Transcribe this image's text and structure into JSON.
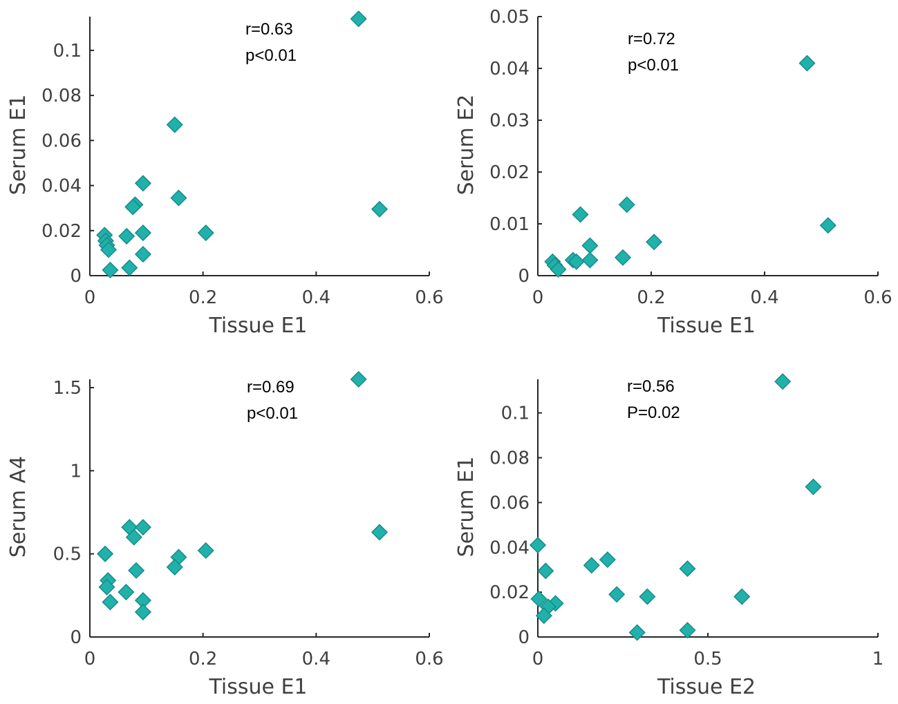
{
  "chart_data": [
    {
      "type": "scatter",
      "xlabel": "Tissue E1",
      "ylabel": "Serum E1",
      "xlim": [
        0,
        0.6
      ],
      "ylim": [
        0,
        0.115
      ],
      "xticks": [
        0,
        0.2,
        0.4,
        0.6
      ],
      "xtick_labels": [
        "0",
        "0.2",
        "0.4",
        "0.6"
      ],
      "yticks": [
        0,
        0.02,
        0.04,
        0.06,
        0.08,
        0.1
      ],
      "ytick_labels": [
        "0",
        "0.02",
        "0.04",
        "0.06",
        "0.08",
        "0.1"
      ],
      "annotation": [
        "r=0.63",
        "p<0.01"
      ],
      "marker_color": "#20b2aa",
      "points": [
        [
          0.475,
          0.114
        ],
        [
          0.15,
          0.067
        ],
        [
          0.512,
          0.0295
        ],
        [
          0.094,
          0.041
        ],
        [
          0.157,
          0.0345
        ],
        [
          0.08,
          0.0315
        ],
        [
          0.076,
          0.0305
        ],
        [
          0.205,
          0.019
        ],
        [
          0.094,
          0.019
        ],
        [
          0.065,
          0.0175
        ],
        [
          0.026,
          0.018
        ],
        [
          0.028,
          0.0155
        ],
        [
          0.03,
          0.0135
        ],
        [
          0.033,
          0.0115
        ],
        [
          0.094,
          0.0095
        ],
        [
          0.07,
          0.0035
        ],
        [
          0.036,
          0.0025
        ]
      ]
    },
    {
      "type": "scatter",
      "xlabel": "Tissue E1",
      "ylabel": "Serum E2",
      "xlim": [
        0,
        0.6
      ],
      "ylim": [
        0,
        0.05
      ],
      "xticks": [
        0,
        0.2,
        0.4,
        0.6
      ],
      "xtick_labels": [
        "0",
        "0.2",
        "0.4",
        "0.6"
      ],
      "yticks": [
        0,
        0.01,
        0.02,
        0.03,
        0.04,
        0.05
      ],
      "ytick_labels": [
        "0",
        "0.01",
        "0.02",
        "0.03",
        "0.04",
        "0.05"
      ],
      "annotation": [
        "r=0.72",
        "p<0.01"
      ],
      "marker_color": "#20b2aa",
      "points": [
        [
          0.475,
          0.041
        ],
        [
          0.157,
          0.0137
        ],
        [
          0.075,
          0.0118
        ],
        [
          0.512,
          0.0097
        ],
        [
          0.205,
          0.0065
        ],
        [
          0.092,
          0.0058
        ],
        [
          0.15,
          0.0035
        ],
        [
          0.092,
          0.003
        ],
        [
          0.062,
          0.003
        ],
        [
          0.068,
          0.0027
        ],
        [
          0.026,
          0.0027
        ],
        [
          0.03,
          0.002
        ],
        [
          0.036,
          0.0012
        ]
      ]
    },
    {
      "type": "scatter",
      "xlabel": "Tissue E1",
      "ylabel": "Serum A4",
      "xlim": [
        0,
        0.6
      ],
      "ylim": [
        0,
        1.55
      ],
      "xticks": [
        0,
        0.2,
        0.4,
        0.6
      ],
      "xtick_labels": [
        "0",
        "0.2",
        "0.4",
        "0.6"
      ],
      "yticks": [
        0,
        0.5,
        1,
        1.5
      ],
      "ytick_labels": [
        "0",
        "0.5",
        "1",
        "1.5"
      ],
      "annotation": [
        "r=0.69",
        "p<0.01"
      ],
      "marker_color": "#20b2aa",
      "points": [
        [
          0.475,
          1.55
        ],
        [
          0.512,
          0.63
        ],
        [
          0.07,
          0.66
        ],
        [
          0.094,
          0.66
        ],
        [
          0.078,
          0.6
        ],
        [
          0.205,
          0.52
        ],
        [
          0.157,
          0.48
        ],
        [
          0.027,
          0.5
        ],
        [
          0.15,
          0.42
        ],
        [
          0.082,
          0.4
        ],
        [
          0.032,
          0.34
        ],
        [
          0.03,
          0.3
        ],
        [
          0.064,
          0.27
        ],
        [
          0.094,
          0.22
        ],
        [
          0.036,
          0.21
        ],
        [
          0.094,
          0.15
        ]
      ]
    },
    {
      "type": "scatter",
      "xlabel": "Tissue E2",
      "ylabel": "Serum E1",
      "xlim": [
        0,
        1
      ],
      "ylim": [
        0,
        0.115
      ],
      "xticks": [
        0,
        0.5,
        1
      ],
      "xtick_labels": [
        "0",
        "0.5",
        "1"
      ],
      "yticks": [
        0,
        0.02,
        0.04,
        0.06,
        0.08,
        0.1
      ],
      "ytick_labels": [
        "0",
        "0.02",
        "0.04",
        "0.06",
        "0.08",
        "0.1"
      ],
      "annotation": [
        "r=0.56",
        "P=0.02"
      ],
      "marker_color": "#20b2aa",
      "points": [
        [
          0.72,
          0.114
        ],
        [
          0.81,
          0.067
        ],
        [
          0.0,
          0.041
        ],
        [
          0.205,
          0.0345
        ],
        [
          0.158,
          0.032
        ],
        [
          0.023,
          0.0295
        ],
        [
          0.44,
          0.0305
        ],
        [
          0.232,
          0.019
        ],
        [
          0.322,
          0.018
        ],
        [
          0.6,
          0.018
        ],
        [
          0.003,
          0.017
        ],
        [
          0.052,
          0.015
        ],
        [
          0.03,
          0.0135
        ],
        [
          0.018,
          0.0095
        ],
        [
          0.292,
          0.002
        ],
        [
          0.44,
          0.003
        ]
      ]
    }
  ]
}
